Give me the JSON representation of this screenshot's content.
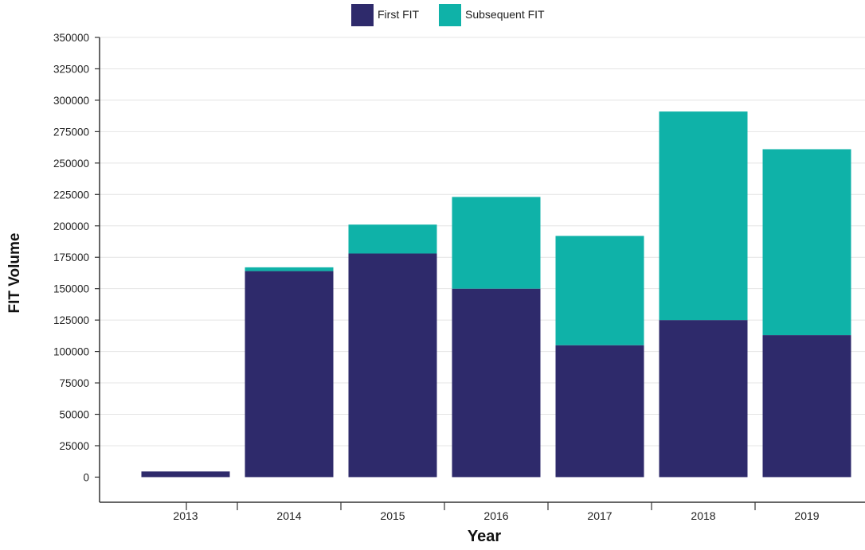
{
  "chart_data": {
    "type": "bar",
    "stacked": true,
    "title": "",
    "xlabel": "Year",
    "ylabel": "FIT Volume",
    "categories": [
      "2013",
      "2014",
      "2015",
      "2016",
      "2017",
      "2018",
      "2019"
    ],
    "series": [
      {
        "name": "First FIT",
        "color": "#2e2a6b",
        "values": [
          4500,
          164000,
          178000,
          150000,
          105000,
          125000,
          113000
        ]
      },
      {
        "name": "Subsequent FIT",
        "color": "#0fb2a8",
        "values": [
          0,
          3000,
          23000,
          73000,
          87000,
          166000,
          148000
        ]
      }
    ],
    "ylim": [
      -20000,
      350000
    ],
    "yticks": [
      0,
      25000,
      50000,
      75000,
      100000,
      125000,
      150000,
      175000,
      200000,
      225000,
      250000,
      275000,
      300000,
      325000,
      350000
    ],
    "ytick_labels": [
      "0",
      "25000",
      "50000",
      "75000",
      "100000",
      "125000",
      "150000",
      "175000",
      "200000",
      "225000",
      "250000",
      "275000",
      "300000",
      "325000",
      "350000"
    ],
    "grid": true,
    "legend_position": "top-center"
  }
}
